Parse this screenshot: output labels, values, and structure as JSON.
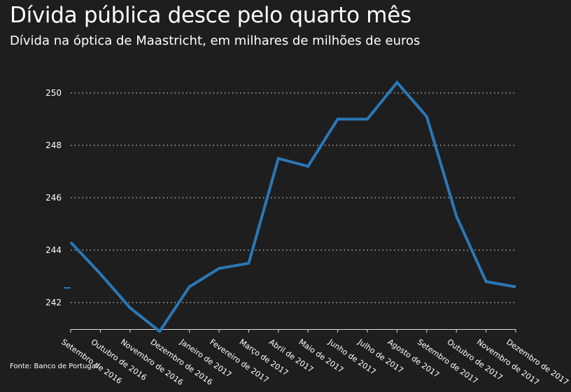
{
  "title": "Dívida pública desce pelo quarto mês",
  "subtitle": "Dívida na óptica de Maastricht, em milhares de milhões de euros",
  "source": "Fonte: Banco de Portugal",
  "colors": {
    "background": "#1e1e1e",
    "line": "#2a78b8",
    "grid": "#cfcfcf",
    "text": "#ffffff"
  },
  "chart_data": {
    "type": "line",
    "categories": [
      "Setembro de 2016",
      "Outubro de 2016",
      "Novembro de 2016",
      "Dezembro de 2016",
      "Janeiro de 2017",
      "Fevereiro de 2017",
      "Março de 2017",
      "Abril de 2017",
      "Maio de 2017",
      "Junho de 2017",
      "Julho de 2017",
      "Agosto de 2017",
      "Setembro de 2017",
      "Outubro de 2017",
      "Novembro de 2017",
      "Dezembro de 2017"
    ],
    "series": [
      {
        "values": [
          244.3,
          243.1,
          241.8,
          240.9,
          242.6,
          243.3,
          243.5,
          247.5,
          247.2,
          249.0,
          249.0,
          250.4,
          249.1,
          245.3,
          242.8,
          242.6
        ]
      }
    ],
    "yticks": [
      242,
      244,
      246,
      248,
      250
    ],
    "ylim": [
      241.0,
      251.0
    ],
    "grid": true,
    "xlabel": "",
    "ylabel": ""
  }
}
